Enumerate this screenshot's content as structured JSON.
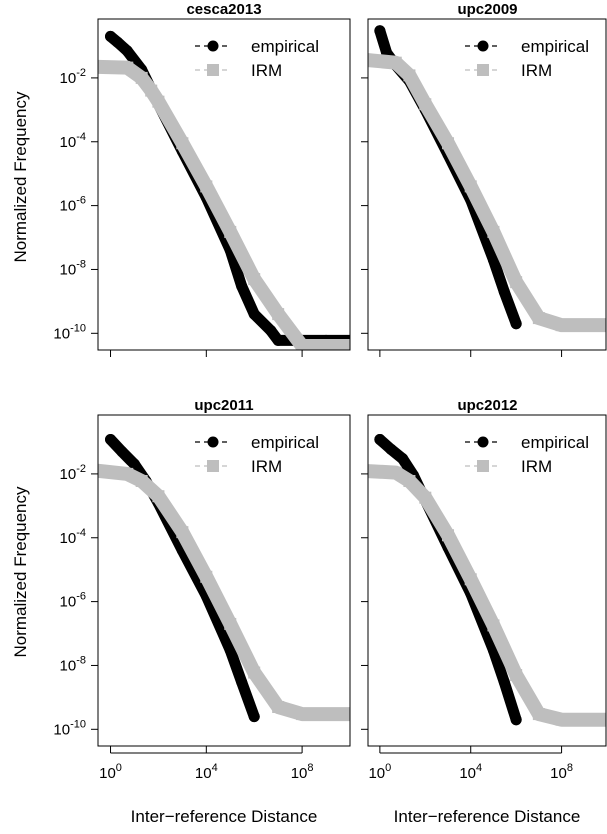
{
  "figure": {
    "y_label": "Normalized Frequency",
    "x_label": "Inter−reference Distance"
  },
  "chart_data": [
    {
      "type": "scatter",
      "title": "cesca2013",
      "xlabel": "",
      "ylabel": "Normalized Frequency",
      "x_scale": "log10",
      "y_scale": "log10",
      "xlim": [
        0.3,
        10000000000.0
      ],
      "ylim": [
        3e-11,
        0.7
      ],
      "y_ticks": [
        {
          "exp": -2
        },
        {
          "exp": -4
        },
        {
          "exp": -6
        },
        {
          "exp": -8
        },
        {
          "exp": -10
        }
      ],
      "x_ticks": [],
      "legend_position": "top-right",
      "series": [
        {
          "name": "empirical",
          "color": "#000000",
          "marker": "circle",
          "x": [
            1,
            2,
            5,
            20,
            100,
            1000,
            10000.0,
            100000.0,
            300000.0,
            1000000.0,
            5000000.0,
            10000000.0,
            100000000.0,
            1000000000.0,
            10000000000.0
          ],
          "y": [
            0.2,
            0.13,
            0.07,
            0.018,
            0.0015,
            5e-05,
            1.8e-06,
            4e-08,
            3e-09,
            4e-10,
            1.2e-10,
            6e-11,
            6e-11,
            6e-11,
            6e-11
          ]
        },
        {
          "name": "IRM",
          "color": "#bebebe",
          "marker": "square",
          "x": [
            0.5,
            5,
            20,
            50,
            100,
            1000,
            10000.0,
            100000.0,
            1000000.0,
            10000000.0,
            100000000.0,
            1000000000.0,
            10000000000.0
          ],
          "y": [
            0.022,
            0.021,
            0.01,
            0.004,
            0.0018,
            9e-05,
            4e-06,
            1.5e-07,
            5e-09,
            4e-10,
            4e-11,
            4e-11,
            4e-11
          ]
        }
      ]
    },
    {
      "type": "scatter",
      "title": "upc2009",
      "xlabel": "",
      "ylabel": "",
      "x_scale": "log10",
      "y_scale": "log10",
      "xlim": [
        0.3,
        10000000000.0
      ],
      "ylim": [
        3e-11,
        0.7
      ],
      "y_ticks": [],
      "x_ticks": [],
      "legend_position": "top-right",
      "series": [
        {
          "name": "empirical",
          "color": "#000000",
          "marker": "circle",
          "x": [
            1,
            2,
            5,
            20,
            100,
            1000,
            10000.0,
            100000.0,
            300000.0,
            1000000.0
          ],
          "y": [
            0.3,
            0.06,
            0.025,
            0.008,
            0.001,
            4e-05,
            1.5e-06,
            2e-08,
            2e-09,
            2e-10
          ]
        },
        {
          "name": "IRM",
          "color": "#bebebe",
          "marker": "square",
          "x": [
            0.5,
            5,
            20,
            100,
            1000,
            10000.0,
            100000.0,
            1000000.0,
            10000000.0,
            100000000.0,
            1000000000.0,
            10000000000.0
          ],
          "y": [
            0.035,
            0.03,
            0.012,
            0.0015,
            9e-05,
            4e-06,
            1.5e-07,
            4e-09,
            3e-10,
            1.8e-10,
            1.8e-10,
            1.8e-10
          ]
        }
      ]
    },
    {
      "type": "scatter",
      "title": "upc2011",
      "xlabel": "Inter−reference Distance",
      "ylabel": "Normalized Frequency",
      "x_scale": "log10",
      "y_scale": "log10",
      "xlim": [
        0.3,
        10000000000.0
      ],
      "ylim": [
        3e-11,
        0.7
      ],
      "y_ticks": [
        {
          "exp": -2
        },
        {
          "exp": -4
        },
        {
          "exp": -6
        },
        {
          "exp": -8
        },
        {
          "exp": -10
        }
      ],
      "x_ticks": [
        {
          "exp": 0
        },
        {
          "exp": 4
        },
        {
          "exp": 8
        }
      ],
      "legend_position": "top-right",
      "series": [
        {
          "name": "empirical",
          "color": "#000000",
          "marker": "circle",
          "x": [
            1,
            3,
            10,
            30,
            100,
            1000,
            10000.0,
            100000.0,
            300000.0,
            1000000.0
          ],
          "y": [
            0.12,
            0.05,
            0.02,
            0.006,
            0.0012,
            4e-05,
            1.5e-06,
            3e-08,
            3e-09,
            2.5e-10
          ]
        },
        {
          "name": "IRM",
          "color": "#bebebe",
          "marker": "square",
          "x": [
            0.5,
            5,
            20,
            100,
            1000,
            10000.0,
            100000.0,
            1000000.0,
            10000000.0,
            100000000.0,
            1000000000.0,
            10000000000.0
          ],
          "y": [
            0.012,
            0.01,
            0.006,
            0.002,
            0.00015,
            6e-06,
            2e-07,
            6e-09,
            5e-10,
            3e-10,
            3e-10,
            3e-10
          ]
        }
      ]
    },
    {
      "type": "scatter",
      "title": "upc2012",
      "xlabel": "Inter−reference Distance",
      "ylabel": "",
      "x_scale": "log10",
      "y_scale": "log10",
      "xlim": [
        0.3,
        10000000000.0
      ],
      "ylim": [
        3e-11,
        0.7
      ],
      "y_ticks": [],
      "x_ticks": [
        {
          "exp": 0
        },
        {
          "exp": 4
        },
        {
          "exp": 8
        }
      ],
      "legend_position": "top-right",
      "series": [
        {
          "name": "empirical",
          "color": "#000000",
          "marker": "circle",
          "x": [
            1,
            3,
            10,
            30,
            100,
            1000,
            10000.0,
            100000.0,
            300000.0,
            1000000.0
          ],
          "y": [
            0.12,
            0.06,
            0.03,
            0.009,
            0.0015,
            5e-05,
            1.8e-06,
            3e-08,
            3e-09,
            2e-10
          ]
        },
        {
          "name": "IRM",
          "color": "#bebebe",
          "marker": "square",
          "x": [
            0.5,
            5,
            20,
            100,
            1000,
            10000.0,
            100000.0,
            1000000.0,
            10000000.0,
            100000000.0,
            1000000000.0,
            10000000000.0
          ],
          "y": [
            0.012,
            0.011,
            0.006,
            0.0018,
            0.00012,
            5e-06,
            1.8e-07,
            5e-09,
            3e-10,
            2e-10,
            2e-10,
            2e-10
          ]
        }
      ]
    }
  ]
}
